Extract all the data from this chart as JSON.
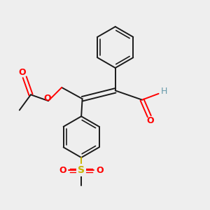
{
  "background_color": "#eeeeee",
  "bond_color": "#1a1a1a",
  "oxygen_color": "#ff0000",
  "sulfur_color": "#c8b400",
  "hydrogen_color": "#6699aa",
  "fig_width": 3.0,
  "fig_height": 3.0,
  "dpi": 100,
  "xlim": [
    0,
    10
  ],
  "ylim": [
    0,
    10
  ]
}
